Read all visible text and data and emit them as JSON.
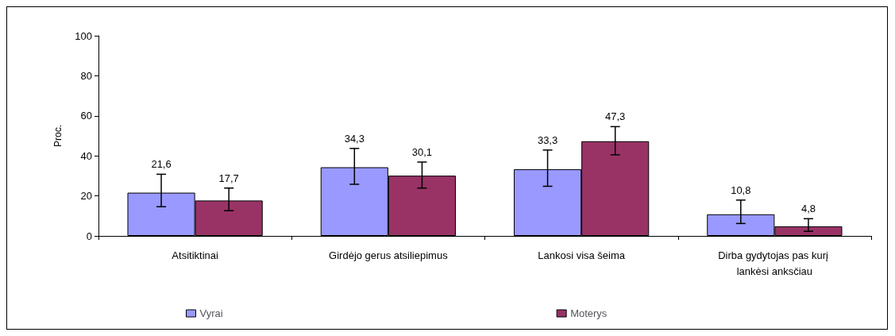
{
  "chart_data": {
    "type": "bar",
    "ylabel": "Proc.",
    "categories": [
      "Atsitiktinai",
      "Girdėjo gerus atsiliepimus",
      "Lankosi visa šeima",
      "Dirba gydytojas pas kurį lankėsi anksčiau"
    ],
    "series": [
      {
        "name": "Vyrai",
        "color": "#9999ff",
        "values": [
          21.6,
          34.3,
          33.3,
          10.8
        ],
        "value_labels": [
          "21,6",
          "34,3",
          "33,3",
          "10,8"
        ],
        "errors": [
          [
            14.6,
            30.8
          ],
          [
            25.8,
            43.7
          ],
          [
            24.8,
            42.9
          ],
          [
            6.2,
            17.9
          ]
        ]
      },
      {
        "name": "Moterys",
        "color": "#993366",
        "values": [
          17.7,
          30.1,
          47.3,
          4.8
        ],
        "value_labels": [
          "17,7",
          "30,1",
          "47,3",
          "4,8"
        ],
        "errors": [
          [
            12.6,
            23.9
          ],
          [
            23.9,
            36.9
          ],
          [
            40.5,
            54.6
          ],
          [
            2.3,
            8.6
          ]
        ]
      }
    ],
    "ylim": [
      0,
      100
    ],
    "yticks": [
      0,
      20,
      40,
      60,
      80,
      100
    ],
    "grid": false,
    "legend": "bottom"
  }
}
